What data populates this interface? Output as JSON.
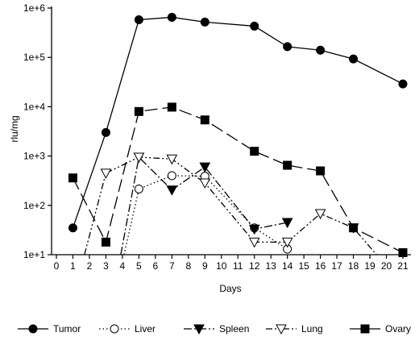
{
  "chart_data": {
    "type": "line",
    "title": "",
    "xlabel": "Days",
    "ylabel": "rlu/mg",
    "y_scale": "log",
    "xlim": [
      0,
      21
    ],
    "ylim": [
      10,
      1000000
    ],
    "x_ticks": [
      0,
      1,
      2,
      3,
      4,
      5,
      6,
      7,
      8,
      9,
      10,
      11,
      12,
      13,
      14,
      15,
      16,
      17,
      18,
      19,
      20,
      21
    ],
    "y_ticks": [
      10,
      100,
      1000,
      10000,
      100000,
      1000000
    ],
    "y_tick_labels": [
      "1e+1",
      "1e+2",
      "1e+3",
      "1e+4",
      "1e+5",
      "1e+6"
    ],
    "grid": false,
    "legend_position": "bottom",
    "series": [
      {
        "name": "Tumor",
        "marker": "circle-filled",
        "line": "solid",
        "points": [
          [
            1,
            35
          ],
          [
            3,
            3000
          ],
          [
            5,
            580000
          ],
          [
            7,
            650000
          ],
          [
            9,
            520000
          ],
          [
            12,
            430000
          ],
          [
            14,
            165000
          ],
          [
            16,
            140000
          ],
          [
            18,
            93000
          ],
          [
            21,
            29000
          ]
        ],
        "lead_in": null
      },
      {
        "name": "Liver",
        "marker": "circle-open",
        "line": "dotted",
        "points": [
          [
            5,
            215
          ],
          [
            7,
            400
          ],
          [
            9,
            390
          ],
          [
            12,
            35
          ],
          [
            14,
            13
          ]
        ],
        "lead_in": [
          4.1,
          10
        ]
      },
      {
        "name": "Spleen",
        "marker": "triangle-down-filled",
        "line": "dash-dot",
        "points": [
          [
            5,
            950
          ],
          [
            7,
            205
          ],
          [
            9,
            600
          ],
          [
            12,
            33
          ],
          [
            14,
            45
          ]
        ],
        "lead_in": [
          3.9,
          10
        ]
      },
      {
        "name": "Lung",
        "marker": "triangle-down-open",
        "line": "dash-dot-dot",
        "points": [
          [
            3,
            450
          ],
          [
            5,
            950
          ],
          [
            7,
            870
          ],
          [
            9,
            285
          ],
          [
            12,
            18
          ],
          [
            14,
            18
          ],
          [
            16,
            68
          ],
          [
            18,
            35
          ]
        ],
        "lead_in": [
          1.7,
          10
        ],
        "lead_out": [
          19.4,
          10
        ]
      },
      {
        "name": "Ovary",
        "marker": "square-filled",
        "line": "long-dash",
        "points": [
          [
            1,
            360
          ],
          [
            3,
            18
          ],
          [
            5,
            8000
          ],
          [
            7,
            9800
          ],
          [
            9,
            5400
          ],
          [
            12,
            1250
          ],
          [
            14,
            650
          ],
          [
            16,
            500
          ],
          [
            18,
            35
          ],
          [
            21,
            11
          ]
        ],
        "lead_in": null
      }
    ]
  }
}
